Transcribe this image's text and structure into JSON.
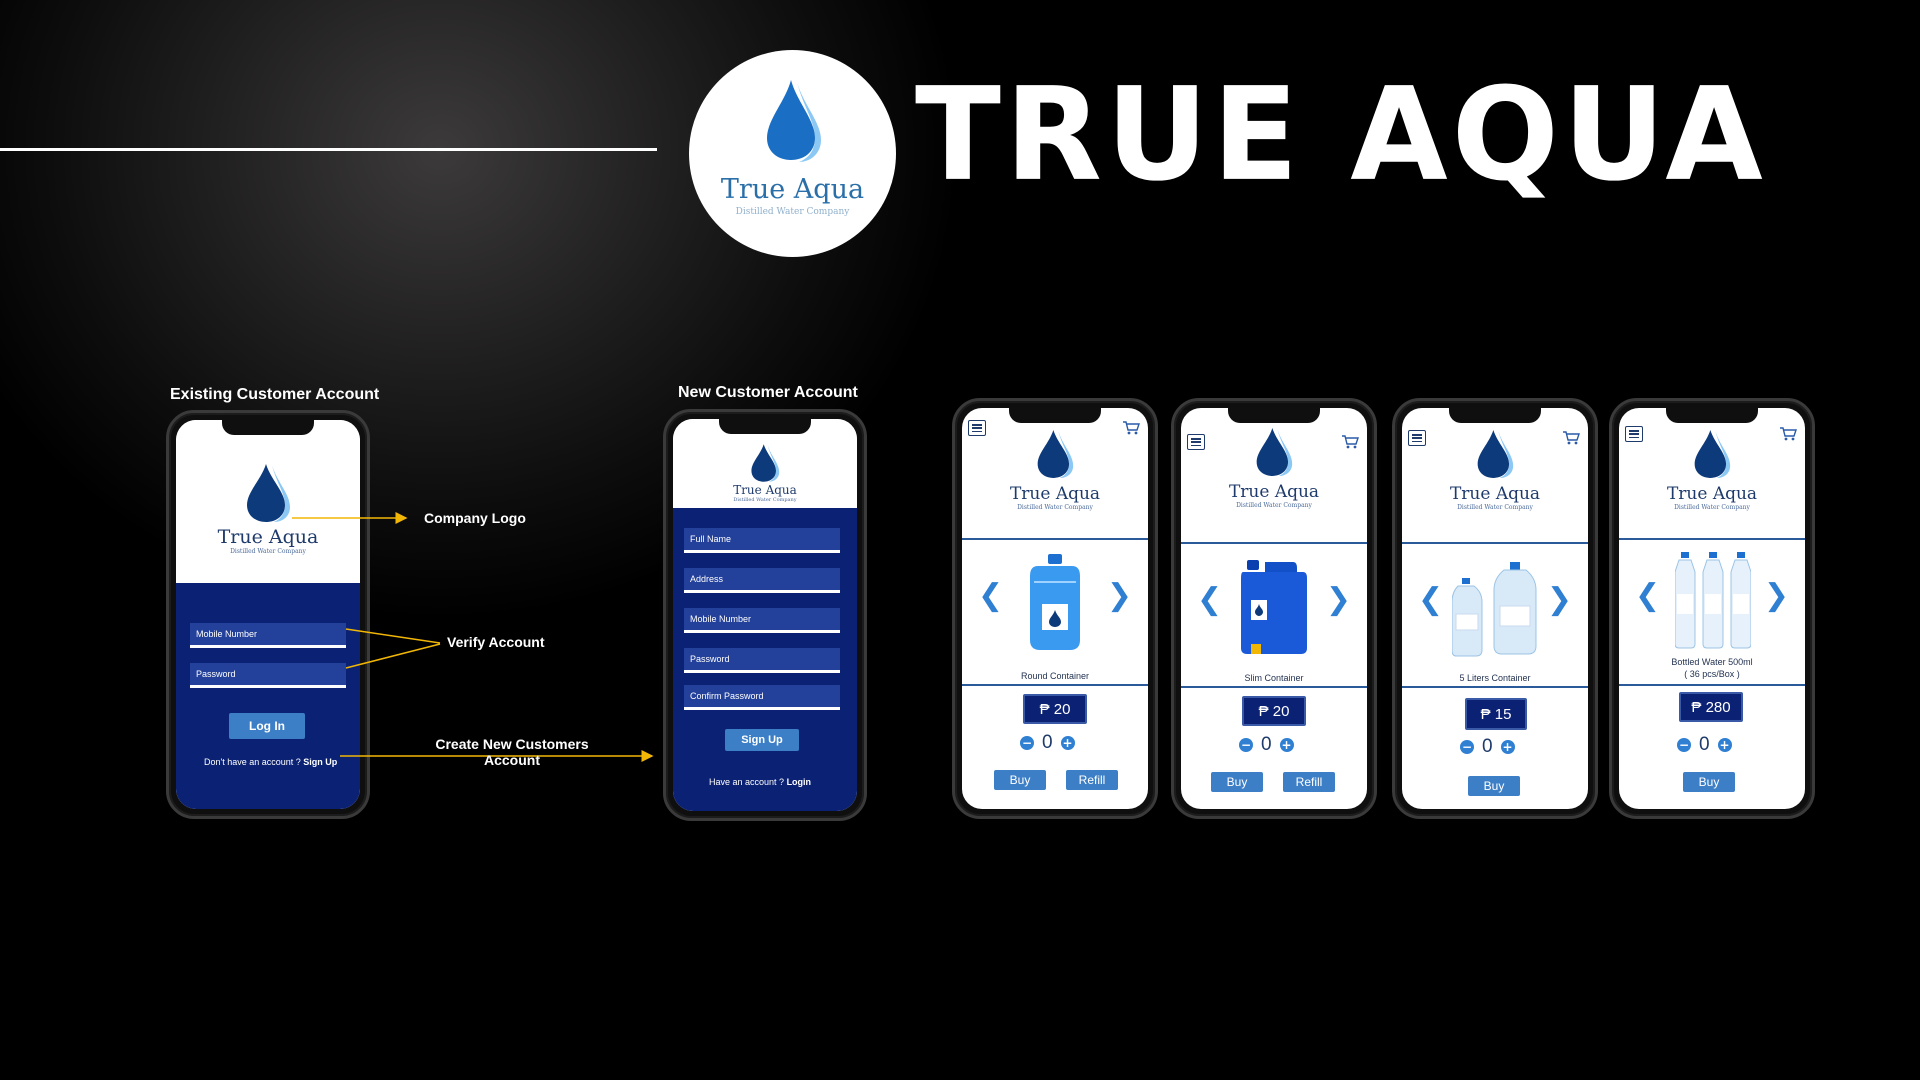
{
  "header": {
    "logo_brand": "True Aqua",
    "logo_tagline": "Distilled Water Company",
    "title": "TRUE AQUA"
  },
  "login": {
    "section_label": "Existing Customer Account",
    "brand": "True Aqua",
    "tagline": "Distilled Water Company",
    "fields": [
      "Mobile Number",
      "Password"
    ],
    "login_button": "Log In",
    "signup_prompt": "Don't have an account ? ",
    "signup_link": "Sign Up"
  },
  "signup": {
    "section_label": "New Customer Account",
    "brand": "True Aqua",
    "tagline": "Distilled Water Company",
    "fields": [
      "Full Name",
      "Address",
      "Mobile Number",
      "Password",
      "Confirm Password"
    ],
    "signup_button": "Sign Up",
    "login_prompt": "Have an account ? ",
    "login_link": "Login"
  },
  "annotations": {
    "company_logo": "Company Logo",
    "verify_account": "Verify Account",
    "create_new_1": "Create New Customers",
    "create_new_2": "Account"
  },
  "products": [
    {
      "brand": "True Aqua",
      "tagline": "Distilled Water Company",
      "name": "Round Container",
      "name2": "",
      "price": "₱ 20",
      "qty": "0",
      "buy": "Buy",
      "refill": "Refill"
    },
    {
      "brand": "True Aqua",
      "tagline": "Distilled Water Company",
      "name": "Slim Container",
      "name2": "",
      "price": "₱ 20",
      "qty": "0",
      "buy": "Buy",
      "refill": "Refill"
    },
    {
      "brand": "True Aqua",
      "tagline": "Distilled Water Company",
      "name": "5 Liters Container",
      "name2": "",
      "price": "₱ 15",
      "qty": "0",
      "buy": "Buy",
      "refill": ""
    },
    {
      "brand": "True Aqua",
      "tagline": "Distilled Water Company",
      "name": "Bottled Water 500ml",
      "name2": "( 36 pcs/Box )",
      "price": "₱ 280",
      "qty": "0",
      "buy": "Buy",
      "refill": ""
    }
  ],
  "colors": {
    "navy": "#0b2274",
    "accent": "#3d7fc6",
    "drop_dark": "#1565b8",
    "drop_light": "#6fb6ee"
  },
  "icons": [
    "water-drop-icon",
    "menu-icon",
    "cart-icon",
    "chevron-left-icon",
    "chevron-right-icon",
    "minus-icon",
    "plus-icon"
  ]
}
